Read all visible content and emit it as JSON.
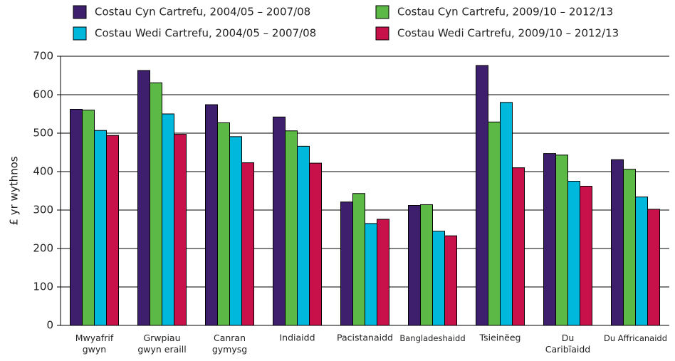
{
  "chart_data": {
    "type": "bar",
    "y_label": "£ yr wythnos",
    "categories": [
      "Mwyafrif\ngwyn",
      "Grwpiau\ngwyn eraill",
      "Canran\ngymysg",
      "Indiaidd",
      "Pacistanaidd",
      "Bangladeshaidd",
      "Tsieinëeg",
      "Du\nCaribïaidd",
      "Du Affricanaidd"
    ],
    "series": [
      {
        "name": "Costau Cyn Cartrefu, 2004/05 – 2007/08",
        "color": "#3d1f6e",
        "values": [
          562,
          663,
          574,
          542,
          321,
          312,
          676,
          447,
          431
        ]
      },
      {
        "name": "Costau Cyn Cartrefu, 2009/10 – 2012/13",
        "color": "#5cb946",
        "values": [
          560,
          631,
          527,
          506,
          343,
          314,
          529,
          443,
          406
        ]
      },
      {
        "name": "Costau Wedi Cartrefu, 2004/05 – 2007/08",
        "color": "#00b8dc",
        "values": [
          507,
          550,
          491,
          466,
          265,
          245,
          580,
          375,
          334
        ]
      },
      {
        "name": "Costau Wedi Cartrefu, 2009/10 – 2012/13",
        "color": "#c8104a",
        "values": [
          494,
          497,
          423,
          422,
          276,
          233,
          410,
          362,
          302
        ]
      }
    ],
    "ylim": [
      0,
      700
    ],
    "yticks": [
      0,
      100,
      200,
      300,
      400,
      500,
      600,
      700
    ],
    "grid": true
  }
}
